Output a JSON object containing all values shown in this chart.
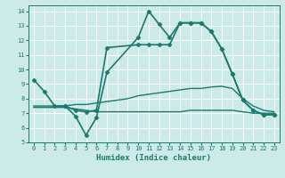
{
  "xlabel": "Humidex (Indice chaleur)",
  "ylabel": "",
  "xlim": [
    -0.5,
    23.5
  ],
  "ylim": [
    5,
    14.4
  ],
  "yticks": [
    5,
    6,
    7,
    8,
    9,
    10,
    11,
    12,
    13,
    14
  ],
  "xticks": [
    0,
    1,
    2,
    3,
    4,
    5,
    6,
    7,
    8,
    9,
    10,
    11,
    12,
    13,
    14,
    15,
    16,
    17,
    18,
    19,
    20,
    21,
    22,
    23
  ],
  "background_color": "#cceae7",
  "grid_color": "#ffffff",
  "line_color": "#1a7a6e",
  "lines": [
    {
      "x": [
        0,
        1,
        2,
        3,
        4,
        5,
        6,
        7,
        10,
        11,
        12,
        13,
        14,
        15,
        16,
        17,
        18,
        19,
        20,
        21,
        22,
        23
      ],
      "y": [
        9.3,
        8.5,
        7.5,
        7.5,
        6.8,
        5.5,
        6.7,
        9.8,
        12.2,
        14.0,
        13.1,
        12.2,
        13.2,
        13.2,
        13.2,
        12.6,
        11.4,
        9.7,
        7.9,
        7.2,
        6.9,
        6.9
      ],
      "marker": "D",
      "ms": 2.5,
      "lw": 1.2
    },
    {
      "x": [
        3,
        4,
        5,
        6,
        7,
        10,
        11,
        12,
        13,
        14,
        15,
        16,
        17,
        18,
        19,
        20,
        21,
        22,
        23
      ],
      "y": [
        7.5,
        7.2,
        7.1,
        7.2,
        11.5,
        11.7,
        11.7,
        11.7,
        11.7,
        13.2,
        13.2,
        13.2,
        12.6,
        11.4,
        9.7,
        7.9,
        7.2,
        6.9,
        6.9
      ],
      "marker": "D",
      "ms": 2.5,
      "lw": 1.2
    },
    {
      "x": [
        0,
        1,
        2,
        3,
        4,
        5,
        6,
        7,
        8,
        9,
        10,
        11,
        12,
        13,
        14,
        15,
        16,
        17,
        18,
        19,
        20,
        21,
        22,
        23
      ],
      "y": [
        7.5,
        7.5,
        7.5,
        7.5,
        7.6,
        7.6,
        7.7,
        7.8,
        7.9,
        8.0,
        8.2,
        8.3,
        8.4,
        8.5,
        8.6,
        8.7,
        8.7,
        8.8,
        8.85,
        8.7,
        8.0,
        7.5,
        7.2,
        7.1
      ],
      "marker": null,
      "ms": 0,
      "lw": 1.0
    },
    {
      "x": [
        0,
        1,
        2,
        3,
        4,
        5,
        6,
        7,
        8,
        9,
        10,
        11,
        12,
        13,
        14,
        15,
        16,
        17,
        18,
        19,
        20,
        21,
        22,
        23
      ],
      "y": [
        7.4,
        7.4,
        7.4,
        7.4,
        7.3,
        7.2,
        7.1,
        7.1,
        7.1,
        7.1,
        7.1,
        7.1,
        7.1,
        7.1,
        7.1,
        7.2,
        7.2,
        7.2,
        7.2,
        7.2,
        7.1,
        7.0,
        7.0,
        7.0
      ],
      "marker": null,
      "ms": 0,
      "lw": 1.0
    }
  ]
}
